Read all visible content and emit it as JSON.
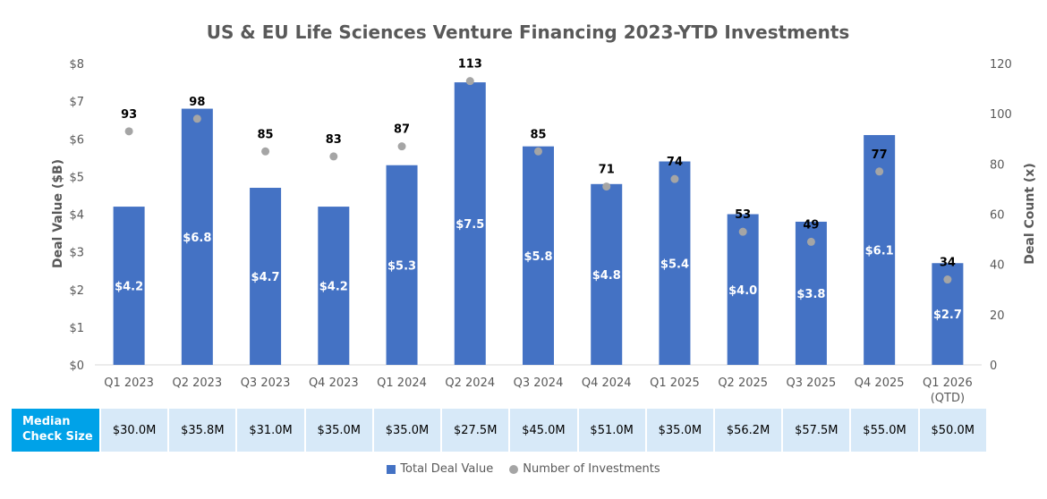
{
  "chart_data": {
    "type": "bar",
    "title": "US & EU Life Sciences Venture Financing 2023-YTD Investments",
    "categories": [
      "Q1 2023",
      "Q2 2023",
      "Q3 2023",
      "Q4 2023",
      "Q1 2024",
      "Q2 2024",
      "Q3 2024",
      "Q4 2024",
      "Q1 2025",
      "Q2 2025",
      "Q3 2025",
      "Q4 2025",
      "Q1 2026 (QTD)"
    ],
    "category_lines": [
      [
        "Q1 2023"
      ],
      [
        "Q2 2023"
      ],
      [
        "Q3 2023"
      ],
      [
        "Q4 2023"
      ],
      [
        "Q1 2024"
      ],
      [
        "Q2 2024"
      ],
      [
        "Q3 2024"
      ],
      [
        "Q4 2024"
      ],
      [
        "Q1 2025"
      ],
      [
        "Q2 2025"
      ],
      [
        "Q3 2025"
      ],
      [
        "Q4 2025"
      ],
      [
        "Q1 2026",
        "(QTD)"
      ]
    ],
    "series": [
      {
        "name": "Total Deal Value",
        "kind": "bar",
        "axis": "left",
        "color": "#4472c4",
        "values": [
          4.2,
          6.8,
          4.7,
          4.2,
          5.3,
          7.5,
          5.8,
          4.8,
          5.4,
          4.0,
          3.8,
          6.1,
          2.7
        ],
        "labels": [
          "$4.2",
          "$6.8",
          "$4.7",
          "$4.2",
          "$5.3",
          "$7.5",
          "$5.8",
          "$4.8",
          "$5.4",
          "$4.0",
          "$3.8",
          "$6.1",
          "$2.7"
        ]
      },
      {
        "name": "Number of Investments",
        "kind": "scatter",
        "axis": "right",
        "color": "#a5a5a5",
        "values": [
          93,
          98,
          85,
          83,
          87,
          113,
          85,
          71,
          74,
          53,
          49,
          77,
          34
        ],
        "labels": [
          "93",
          "98",
          "85",
          "83",
          "87",
          "113",
          "85",
          "71",
          "74",
          "53",
          "49",
          "77",
          "34"
        ]
      }
    ],
    "y_left": {
      "label": "Deal Value ($B)",
      "ylim": [
        0,
        8
      ],
      "ticks": [
        "$0",
        "$1",
        "$2",
        "$3",
        "$4",
        "$5",
        "$6",
        "$7",
        "$8"
      ]
    },
    "y_right": {
      "label": "Deal Count (x)",
      "ylim": [
        0,
        120
      ],
      "ticks": [
        "0",
        "20",
        "40",
        "60",
        "80",
        "100",
        "120"
      ]
    },
    "grid": false,
    "legend_position": "bottom"
  },
  "median_table": {
    "header": [
      "Median",
      "Check Size"
    ],
    "values": [
      "$30.0M",
      "$35.8M",
      "$31.0M",
      "$35.0M",
      "$35.0M",
      "$27.5M",
      "$45.0M",
      "$51.0M",
      "$35.0M",
      "$56.2M",
      "$57.5M",
      "$55.0M",
      "$50.0M"
    ]
  },
  "legend": {
    "items": [
      {
        "label": "Total Deal Value",
        "icon": "bar-swatch-icon"
      },
      {
        "label": "Number of Investments",
        "icon": "dot-swatch-icon"
      }
    ]
  }
}
